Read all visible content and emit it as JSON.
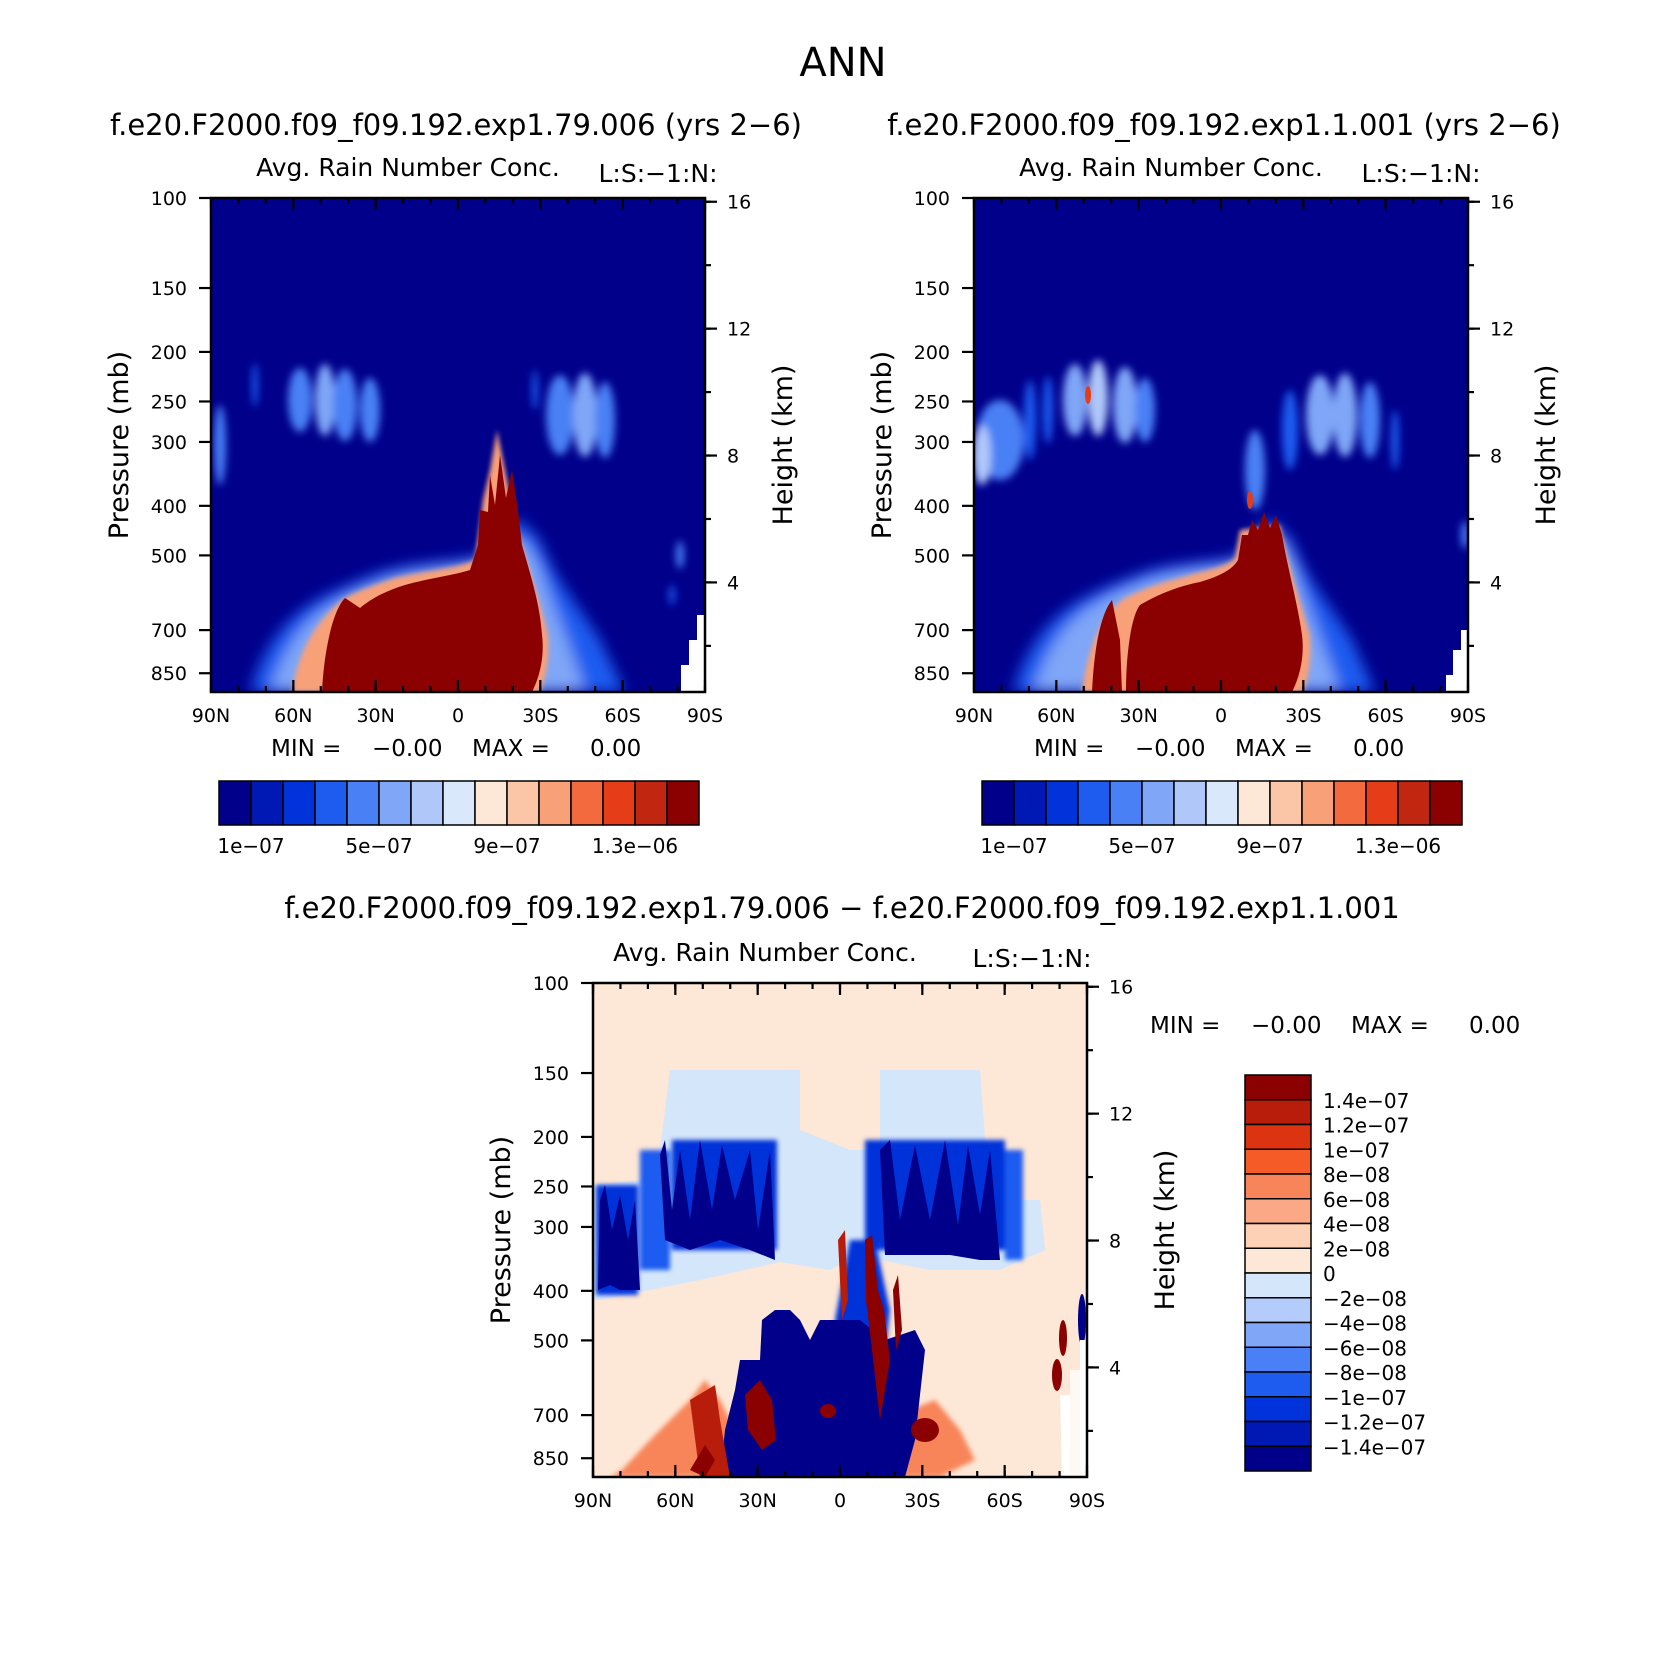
{
  "page": {
    "title": "ANN",
    "diff_title": "f.e20.F2000.f09_f09.192.exp1.79.006 − f.e20.F2000.f09_f09.192.exp1.1.001"
  },
  "chart_data": [
    {
      "type": "heatmap",
      "case": "f.e20.F2000.f09_f09.192.exp1.79.006 (yrs 2−6)",
      "title": "Avg. Rain Number Conc.",
      "subtitle": "L:S:−1:N:",
      "ylabel": "Pressure (mb)",
      "y2label": "Height (km)",
      "x_ticks": [
        "90N",
        "60N",
        "30N",
        "0",
        "30S",
        "60S",
        "90S"
      ],
      "y_ticks": [
        "100",
        "150",
        "200",
        "250",
        "300",
        "400",
        "500",
        "700",
        "850"
      ],
      "y2_ticks": [
        "16",
        "12",
        "8",
        "4"
      ],
      "min_label": "MIN =",
      "min_value": "−0.00",
      "max_label": "MAX =",
      "max_value": "0.00",
      "colorbar_labels": [
        "1e−07",
        "5e−07",
        "9e−07",
        "1.3e−06"
      ],
      "colorbar_colors": [
        "#00008b",
        "#0018b4",
        "#0033d9",
        "#1e5cf0",
        "#4a80f5",
        "#7fa6f7",
        "#b0c8f9",
        "#d9e9fb",
        "#fde7d6",
        "#fbc5a8",
        "#f8a078",
        "#f36a3e",
        "#e43d18",
        "#c12610",
        "#8b0000"
      ]
    },
    {
      "type": "heatmap",
      "case": "f.e20.F2000.f09_f09.192.exp1.1.001 (yrs 2−6)",
      "title": "Avg. Rain Number Conc.",
      "subtitle": "L:S:−1:N:",
      "ylabel": "Pressure (mb)",
      "y2label": "Height (km)",
      "x_ticks": [
        "90N",
        "60N",
        "30N",
        "0",
        "30S",
        "60S",
        "90S"
      ],
      "y_ticks": [
        "100",
        "150",
        "200",
        "250",
        "300",
        "400",
        "500",
        "700",
        "850"
      ],
      "y2_ticks": [
        "16",
        "12",
        "8",
        "4"
      ],
      "min_label": "MIN =",
      "min_value": "−0.00",
      "max_label": "MAX =",
      "max_value": "0.00",
      "colorbar_labels": [
        "1e−07",
        "5e−07",
        "9e−07",
        "1.3e−06"
      ],
      "colorbar_colors": [
        "#00008b",
        "#0018b4",
        "#0033d9",
        "#1e5cf0",
        "#4a80f5",
        "#7fa6f7",
        "#b0c8f9",
        "#d9e9fb",
        "#fde7d6",
        "#fbc5a8",
        "#f8a078",
        "#f36a3e",
        "#e43d18",
        "#c12610",
        "#8b0000"
      ]
    },
    {
      "type": "heatmap",
      "title": "Avg. Rain Number Conc.",
      "subtitle": "L:S:−1:N:",
      "ylabel": "Pressure (mb)",
      "y2label": "Height (km)",
      "x_ticks": [
        "90N",
        "60N",
        "30N",
        "0",
        "30S",
        "60S",
        "90S"
      ],
      "y_ticks": [
        "100",
        "150",
        "200",
        "250",
        "300",
        "400",
        "500",
        "700",
        "850"
      ],
      "y2_ticks": [
        "16",
        "12",
        "8",
        "4"
      ],
      "min_label": "MIN =",
      "min_value": "−0.00",
      "max_label": "MAX =",
      "max_value": "0.00",
      "colorbar_labels": [
        "1.4e−07",
        "1.2e−07",
        "1e−07",
        "8e−08",
        "6e−08",
        "4e−08",
        "2e−08",
        "0",
        "−2e−08",
        "−4e−08",
        "−6e−08",
        "−8e−08",
        "−1e−07",
        "−1.2e−07",
        "−1.4e−07"
      ],
      "colorbar_colors": [
        "#8b0000",
        "#b81c0a",
        "#dc3310",
        "#f55b26",
        "#f8855a",
        "#faa886",
        "#fcd1b6",
        "#fde7d6",
        "#d4e6fa",
        "#b3ccfb",
        "#7fa6f7",
        "#4a80f5",
        "#1e5cf0",
        "#0033d9",
        "#0018b4",
        "#00008b"
      ]
    }
  ]
}
